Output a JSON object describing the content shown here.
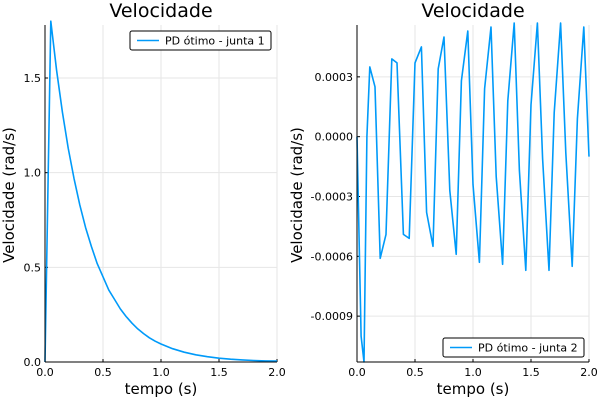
{
  "chart_data": [
    {
      "type": "line",
      "title": "Velocidade",
      "xlabel": "tempo (s)",
      "ylabel": "Velocidade (rad/s)",
      "xlim": [
        0,
        2.0
      ],
      "ylim": [
        0,
        1.78
      ],
      "xticks": [
        0,
        0.5,
        1.0,
        1.5,
        2.0
      ],
      "xtick_labels": [
        "0.0",
        "0.5",
        "1.0",
        "1.5",
        "2.0"
      ],
      "yticks": [
        0,
        0.5,
        1.0,
        1.5
      ],
      "ytick_labels": [
        "0.0",
        "0.5",
        "1.0",
        "1.5"
      ],
      "grid": true,
      "legend_position": "top-right",
      "series": [
        {
          "name": "PD ótimo - junta 1",
          "color": "#009af9",
          "x": [
            0,
            0.05,
            0.1,
            0.15,
            0.2,
            0.25,
            0.3,
            0.35,
            0.4,
            0.45,
            0.5,
            0.55,
            0.6,
            0.65,
            0.7,
            0.75,
            0.8,
            0.85,
            0.9,
            0.95,
            1.0,
            1.1,
            1.2,
            1.3,
            1.4,
            1.5,
            1.6,
            1.7,
            1.8,
            1.9,
            2.0
          ],
          "y": [
            0,
            1.8,
            1.54,
            1.32,
            1.13,
            0.97,
            0.83,
            0.71,
            0.61,
            0.52,
            0.45,
            0.38,
            0.33,
            0.28,
            0.24,
            0.205,
            0.175,
            0.15,
            0.128,
            0.11,
            0.095,
            0.07,
            0.052,
            0.038,
            0.028,
            0.02,
            0.015,
            0.011,
            0.008,
            0.006,
            0.005
          ]
        }
      ]
    },
    {
      "type": "line",
      "title": "Velocidade",
      "xlabel": "tempo (s)",
      "ylabel": "Velocidade (rad/s)",
      "xlim": [
        0,
        2.0
      ],
      "ylim": [
        -0.00113,
        0.00056
      ],
      "xticks": [
        0,
        0.5,
        1.0,
        1.5,
        2.0
      ],
      "xtick_labels": [
        "0.0",
        "0.5",
        "1.0",
        "1.5",
        "2.0"
      ],
      "yticks": [
        -0.0009,
        -0.0006,
        -0.0003,
        0.0,
        0.0003
      ],
      "ytick_labels": [
        "-0.0009",
        "-0.0006",
        "-0.0003",
        "0.0000",
        "0.0003"
      ],
      "grid": true,
      "legend_position": "bottom-right",
      "series": [
        {
          "name": "PD ótimo - junta 2",
          "color": "#009af9",
          "x": [
            0,
            0.035,
            0.06,
            0.085,
            0.11,
            0.155,
            0.2,
            0.25,
            0.3,
            0.345,
            0.4,
            0.45,
            0.5,
            0.555,
            0.6,
            0.655,
            0.7,
            0.75,
            0.8,
            0.855,
            0.9,
            0.955,
            1.0,
            1.055,
            1.1,
            1.155,
            1.2,
            1.255,
            1.3,
            1.355,
            1.4,
            1.455,
            1.5,
            1.555,
            1.6,
            1.655,
            1.7,
            1.755,
            1.8,
            1.855,
            1.9,
            1.955,
            2.0
          ],
          "y": [
            0,
            -0.001,
            -0.00113,
            0.0,
            0.00035,
            0.00025,
            -0.00061,
            -0.00049,
            0.00039,
            0.00037,
            -0.00049,
            -0.00051,
            0.00037,
            0.00045,
            -0.00038,
            -0.00055,
            0.00034,
            0.0005,
            -0.00027,
            -0.00059,
            0.00028,
            0.00053,
            -0.00024,
            -0.00063,
            0.00024,
            0.00055,
            -0.0002,
            -0.00064,
            0.00018,
            0.00057,
            -0.00017,
            -0.00067,
            0.00016,
            0.00057,
            -0.00011,
            -0.00067,
            0.00012,
            0.00057,
            -8e-05,
            -0.00065,
            9e-05,
            0.00055,
            -0.0001
          ]
        }
      ]
    }
  ]
}
